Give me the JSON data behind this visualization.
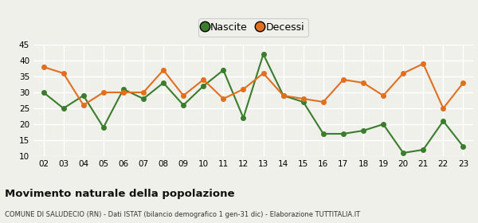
{
  "years": [
    "02",
    "03",
    "04",
    "05",
    "06",
    "07",
    "08",
    "09",
    "10",
    "11",
    "12",
    "13",
    "14",
    "15",
    "16",
    "17",
    "18",
    "19",
    "20",
    "21",
    "22",
    "23"
  ],
  "nascite": [
    30,
    25,
    29,
    19,
    31,
    28,
    33,
    26,
    32,
    37,
    22,
    42,
    29,
    27,
    17,
    17,
    18,
    20,
    11,
    12,
    21,
    13
  ],
  "decessi": [
    38,
    36,
    26,
    30,
    30,
    30,
    37,
    29,
    34,
    28,
    31,
    36,
    29,
    28,
    27,
    34,
    33,
    29,
    36,
    39,
    25,
    33
  ],
  "nascite_color": "#3a7d2c",
  "decessi_color": "#e07020",
  "bg_color": "#f0f0eb",
  "grid_color": "#ffffff",
  "ylim": [
    10,
    45
  ],
  "yticks": [
    10,
    15,
    20,
    25,
    30,
    35,
    40,
    45
  ],
  "title": "Movimento naturale della popolazione",
  "subtitle": "COMUNE DI SALUDECIO (RN) - Dati ISTAT (bilancio demografico 1 gen-31 dic) - Elaborazione TUTTITALIA.IT",
  "legend_labels": [
    "Nascite",
    "Decessi"
  ],
  "marker": "o",
  "markersize": 4.0,
  "linewidth": 1.5
}
